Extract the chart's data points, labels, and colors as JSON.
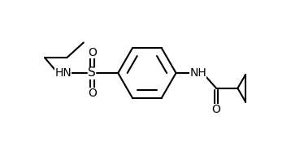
{
  "bg_color": "#ffffff",
  "line_color": "#000000",
  "bond_width": 1.5,
  "figsize": [
    3.58,
    1.8
  ],
  "dpi": 100,
  "xlim": [
    0.0,
    9.5
  ],
  "ylim": [
    0.5,
    5.0
  ]
}
